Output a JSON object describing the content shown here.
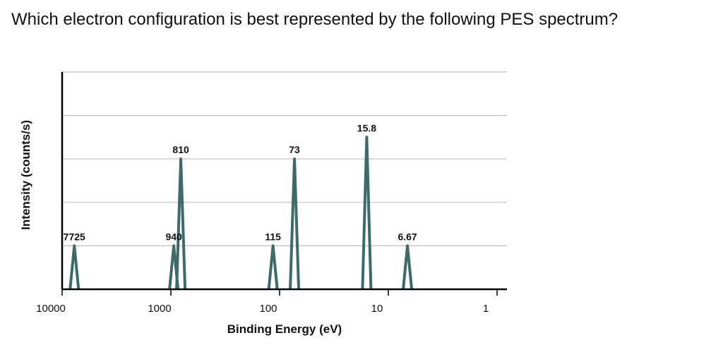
{
  "question": "Which electron configuration is best represented by the following PES spectrum?",
  "chart_data": {
    "type": "line",
    "title": "",
    "xlabel": "Binding Energy (eV)",
    "ylabel": "Intensity (counts/s)",
    "x_scale": "log",
    "x_reversed": true,
    "xlim": [
      10000,
      1
    ],
    "x_ticks": [
      10000,
      1000,
      100,
      10,
      1
    ],
    "x_tick_labels": [
      "10000",
      "1000",
      "100",
      "10",
      "1"
    ],
    "ylim": [
      0,
      5
    ],
    "y_gridlines": [
      1,
      2,
      3,
      4,
      5
    ],
    "grid": true,
    "series_color": "#3d6b6b",
    "peaks": [
      {
        "x": 7725,
        "y": 1,
        "label": "7725"
      },
      {
        "x": 940,
        "y": 1,
        "label": "940"
      },
      {
        "x": 810,
        "y": 3,
        "label": "810"
      },
      {
        "x": 115,
        "y": 1,
        "label": "115"
      },
      {
        "x": 73,
        "y": 3,
        "label": "73"
      },
      {
        "x": 15.8,
        "y": 3.5,
        "label": "15.8"
      },
      {
        "x": 6.67,
        "y": 1,
        "label": "6.67"
      }
    ]
  }
}
